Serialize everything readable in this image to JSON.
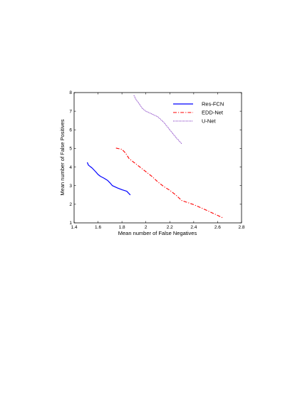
{
  "chart_data": {
    "type": "line",
    "title": "",
    "xlabel": "Mean number of False Negatives",
    "ylabel": "Mean number of False Positives",
    "xlim": [
      1.4,
      2.8
    ],
    "ylim": [
      1,
      8
    ],
    "xticks": [
      "1.4",
      "1.6",
      "1.8",
      "2",
      "2.2",
      "2.4",
      "2.6",
      "2.8"
    ],
    "yticks": [
      "1",
      "2",
      "3",
      "4",
      "5",
      "6",
      "7",
      "8"
    ],
    "grid": false,
    "legend_position": "top-right",
    "series": [
      {
        "name": "Res-FCN",
        "color": "#0000ff",
        "dash": "solid",
        "x": [
          1.51,
          1.52,
          1.55,
          1.58,
          1.6,
          1.62,
          1.65,
          1.68,
          1.7,
          1.72,
          1.76,
          1.8,
          1.84,
          1.87
        ],
        "y": [
          4.25,
          4.1,
          3.95,
          3.75,
          3.6,
          3.5,
          3.4,
          3.28,
          3.15,
          3.0,
          2.88,
          2.78,
          2.7,
          2.5
        ]
      },
      {
        "name": "EDD-Net",
        "color": "#ff0000",
        "dash": "dashdot",
        "x": [
          1.75,
          1.8,
          1.83,
          1.86,
          1.9,
          1.95,
          2.0,
          2.05,
          2.1,
          2.15,
          2.2,
          2.25,
          2.3,
          2.4,
          2.5,
          2.6,
          2.65
        ],
        "y": [
          5.02,
          4.95,
          4.75,
          4.45,
          4.25,
          4.0,
          3.75,
          3.5,
          3.2,
          2.95,
          2.75,
          2.5,
          2.2,
          1.98,
          1.7,
          1.4,
          1.25
        ]
      },
      {
        "name": "U-Net",
        "color": "#7b2cbf",
        "dash": "dotted",
        "x": [
          1.9,
          1.92,
          1.95,
          1.97,
          2.0,
          2.05,
          2.1,
          2.15,
          2.2,
          2.25,
          2.3
        ],
        "y": [
          7.85,
          7.6,
          7.35,
          7.15,
          7.0,
          6.85,
          6.7,
          6.4,
          6.0,
          5.6,
          5.25
        ]
      }
    ]
  }
}
